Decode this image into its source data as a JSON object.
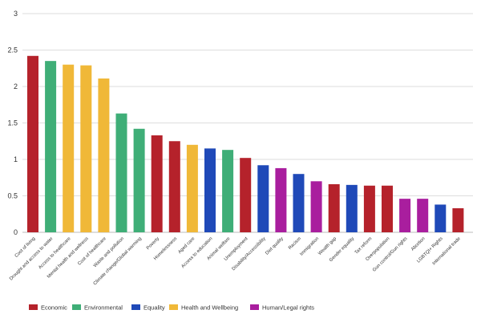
{
  "chart_data": {
    "type": "bar",
    "ylim": [
      0,
      3
    ],
    "yticks": [
      0,
      0.5,
      1,
      1.5,
      2,
      2.5,
      3
    ],
    "ytick_labels": [
      "0",
      "0.5",
      "1",
      "1.5",
      "2",
      "2.5",
      "3"
    ],
    "grid": true,
    "legend_position": "bottom-left",
    "categories": [
      "Cost of living",
      "Drought and access to water",
      "Access to healthcare",
      "Mental health and wellness",
      "Cost of healthcare",
      "Waste and pollution",
      "Climate change/Global warming",
      "Poverty",
      "Homelessness",
      "Aged care",
      "Access to education",
      "Animal welfare",
      "Unemployment",
      "Disability/Accessibility",
      "Diet quality",
      "Racism",
      "Immigration",
      "Wealth gap",
      "Gender equality",
      "Tax reform",
      "Overpopulation",
      "Gun control/Gun rights",
      "Abortion",
      "LGBTQI+ Rights",
      "International trade"
    ],
    "values": [
      2.42,
      2.35,
      2.3,
      2.29,
      2.11,
      1.63,
      1.42,
      1.33,
      1.25,
      1.2,
      1.15,
      1.13,
      1.02,
      0.92,
      0.88,
      0.8,
      0.7,
      0.66,
      0.65,
      0.64,
      0.64,
      0.46,
      0.46,
      0.38,
      0.33
    ],
    "groups": [
      "Economic",
      "Environmental",
      "Health and Wellbeing",
      "Health and Wellbeing",
      "Health and Wellbeing",
      "Environmental",
      "Environmental",
      "Economic",
      "Economic",
      "Health and Wellbeing",
      "Equality",
      "Environmental",
      "Economic",
      "Equality",
      "Human/Legal rights",
      "Equality",
      "Human/Legal rights",
      "Economic",
      "Equality",
      "Economic",
      "Economic",
      "Human/Legal rights",
      "Human/Legal rights",
      "Equality",
      "Economic"
    ],
    "legend": [
      {
        "name": "Economic",
        "color": "#b5222b"
      },
      {
        "name": "Environmental",
        "color": "#3fae77"
      },
      {
        "name": "Equality",
        "color": "#1f49b8"
      },
      {
        "name": "Health and Wellbeing",
        "color": "#f0b838"
      },
      {
        "name": "Human/Legal rights",
        "color": "#a91e9e"
      }
    ]
  }
}
